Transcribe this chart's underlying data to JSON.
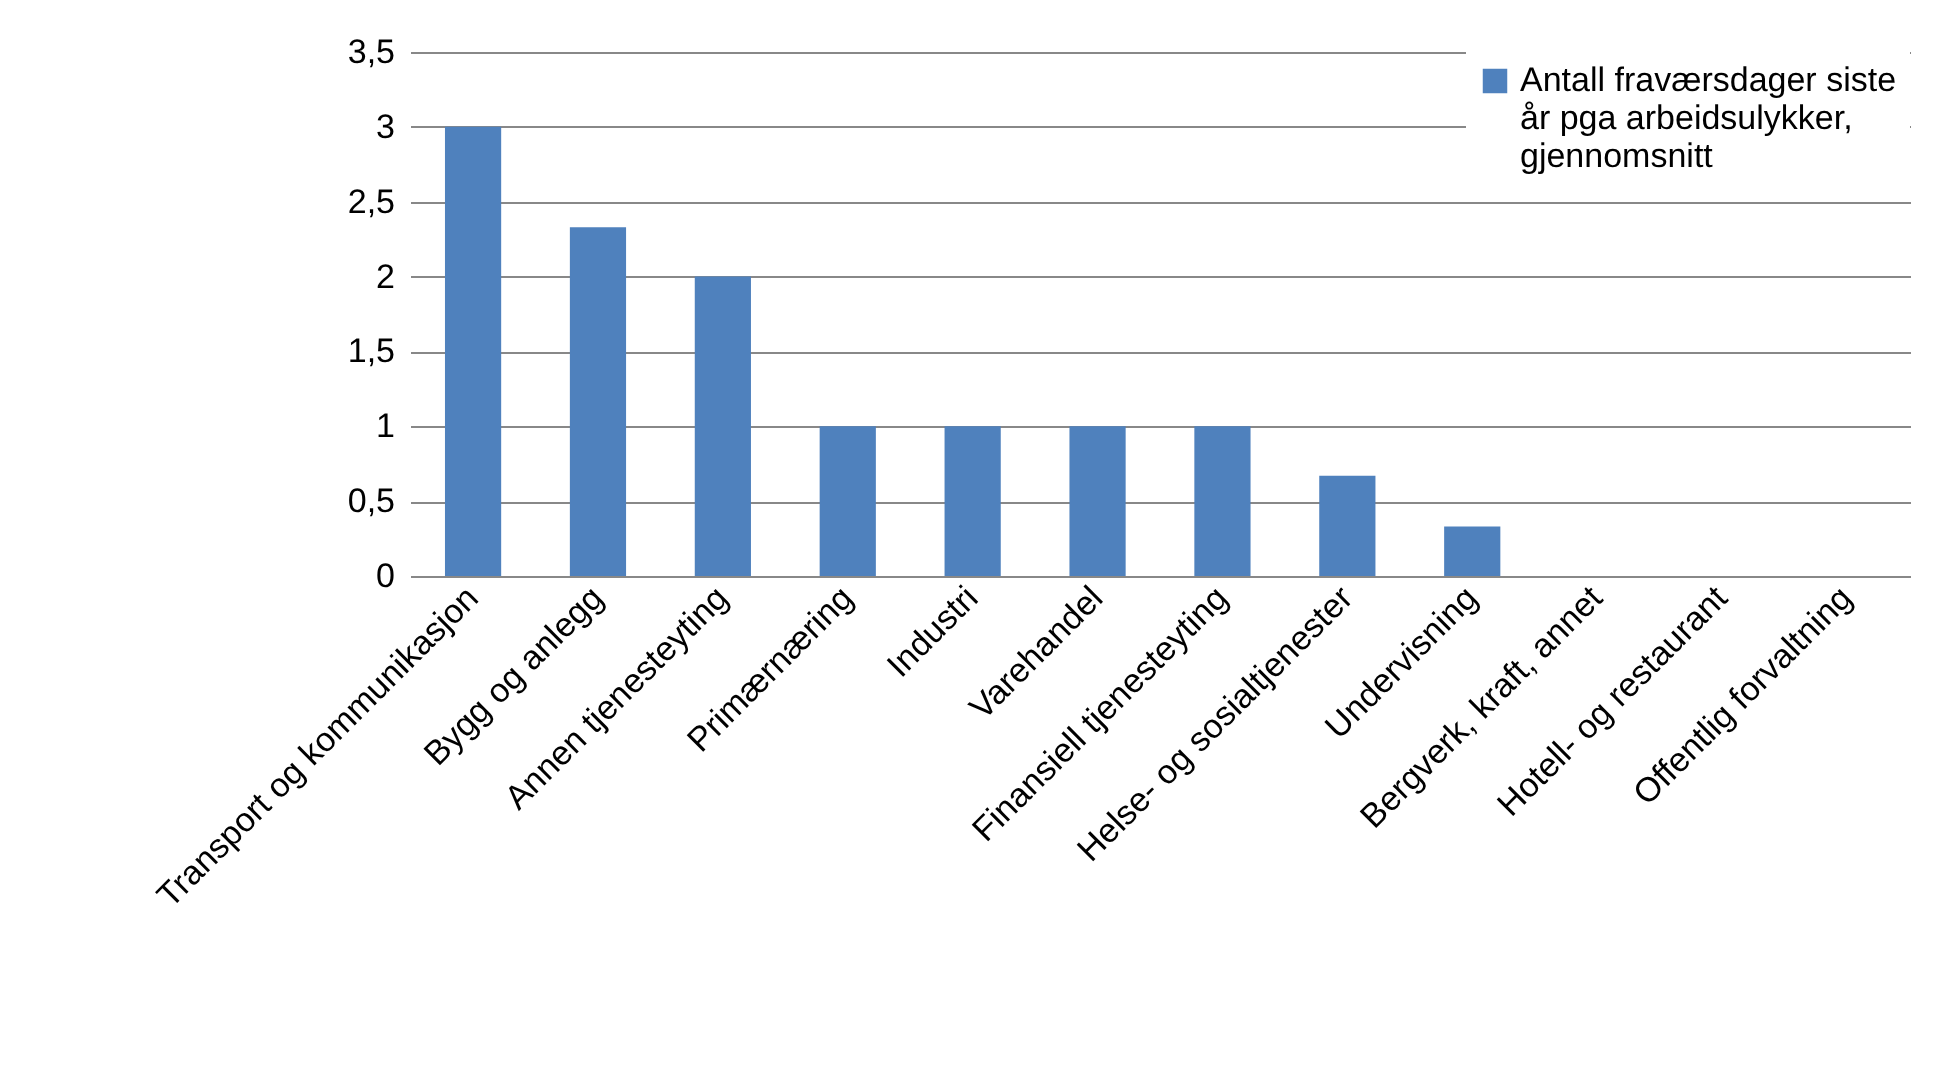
{
  "chart_data": {
    "type": "bar",
    "categories": [
      "Transport og kommunikasjon",
      "Bygg og anlegg",
      "Annen tjenesteyting",
      "Primærnæring",
      "Industri",
      "Varehandel",
      "Finansiell tjenesteyting",
      "Helse- og sosialtjenester",
      "Undervisning",
      "Bergverk, kraft, annet",
      "Hotell- og restaurant",
      "Offentlig forvaltning"
    ],
    "series": [
      {
        "name": "Antall fraværsdager siste år pga arbeidsulykker, gjennomsnitt",
        "color": "#4f81bd",
        "values": [
          3,
          2.33,
          2,
          1,
          1,
          1,
          1,
          0.67,
          0.33,
          0,
          0,
          0
        ]
      }
    ],
    "ylim": [
      0,
      3.5
    ],
    "yticks": [
      {
        "value": 0,
        "label": "0"
      },
      {
        "value": 0.5,
        "label": "0,5"
      },
      {
        "value": 1,
        "label": "1"
      },
      {
        "value": 1.5,
        "label": "1,5"
      },
      {
        "value": 2,
        "label": "2"
      },
      {
        "value": 2.5,
        "label": "2,5"
      },
      {
        "value": 3,
        "label": "3"
      },
      {
        "value": 3.5,
        "label": "3,5"
      }
    ],
    "grid": "y",
    "legend": "top right"
  }
}
